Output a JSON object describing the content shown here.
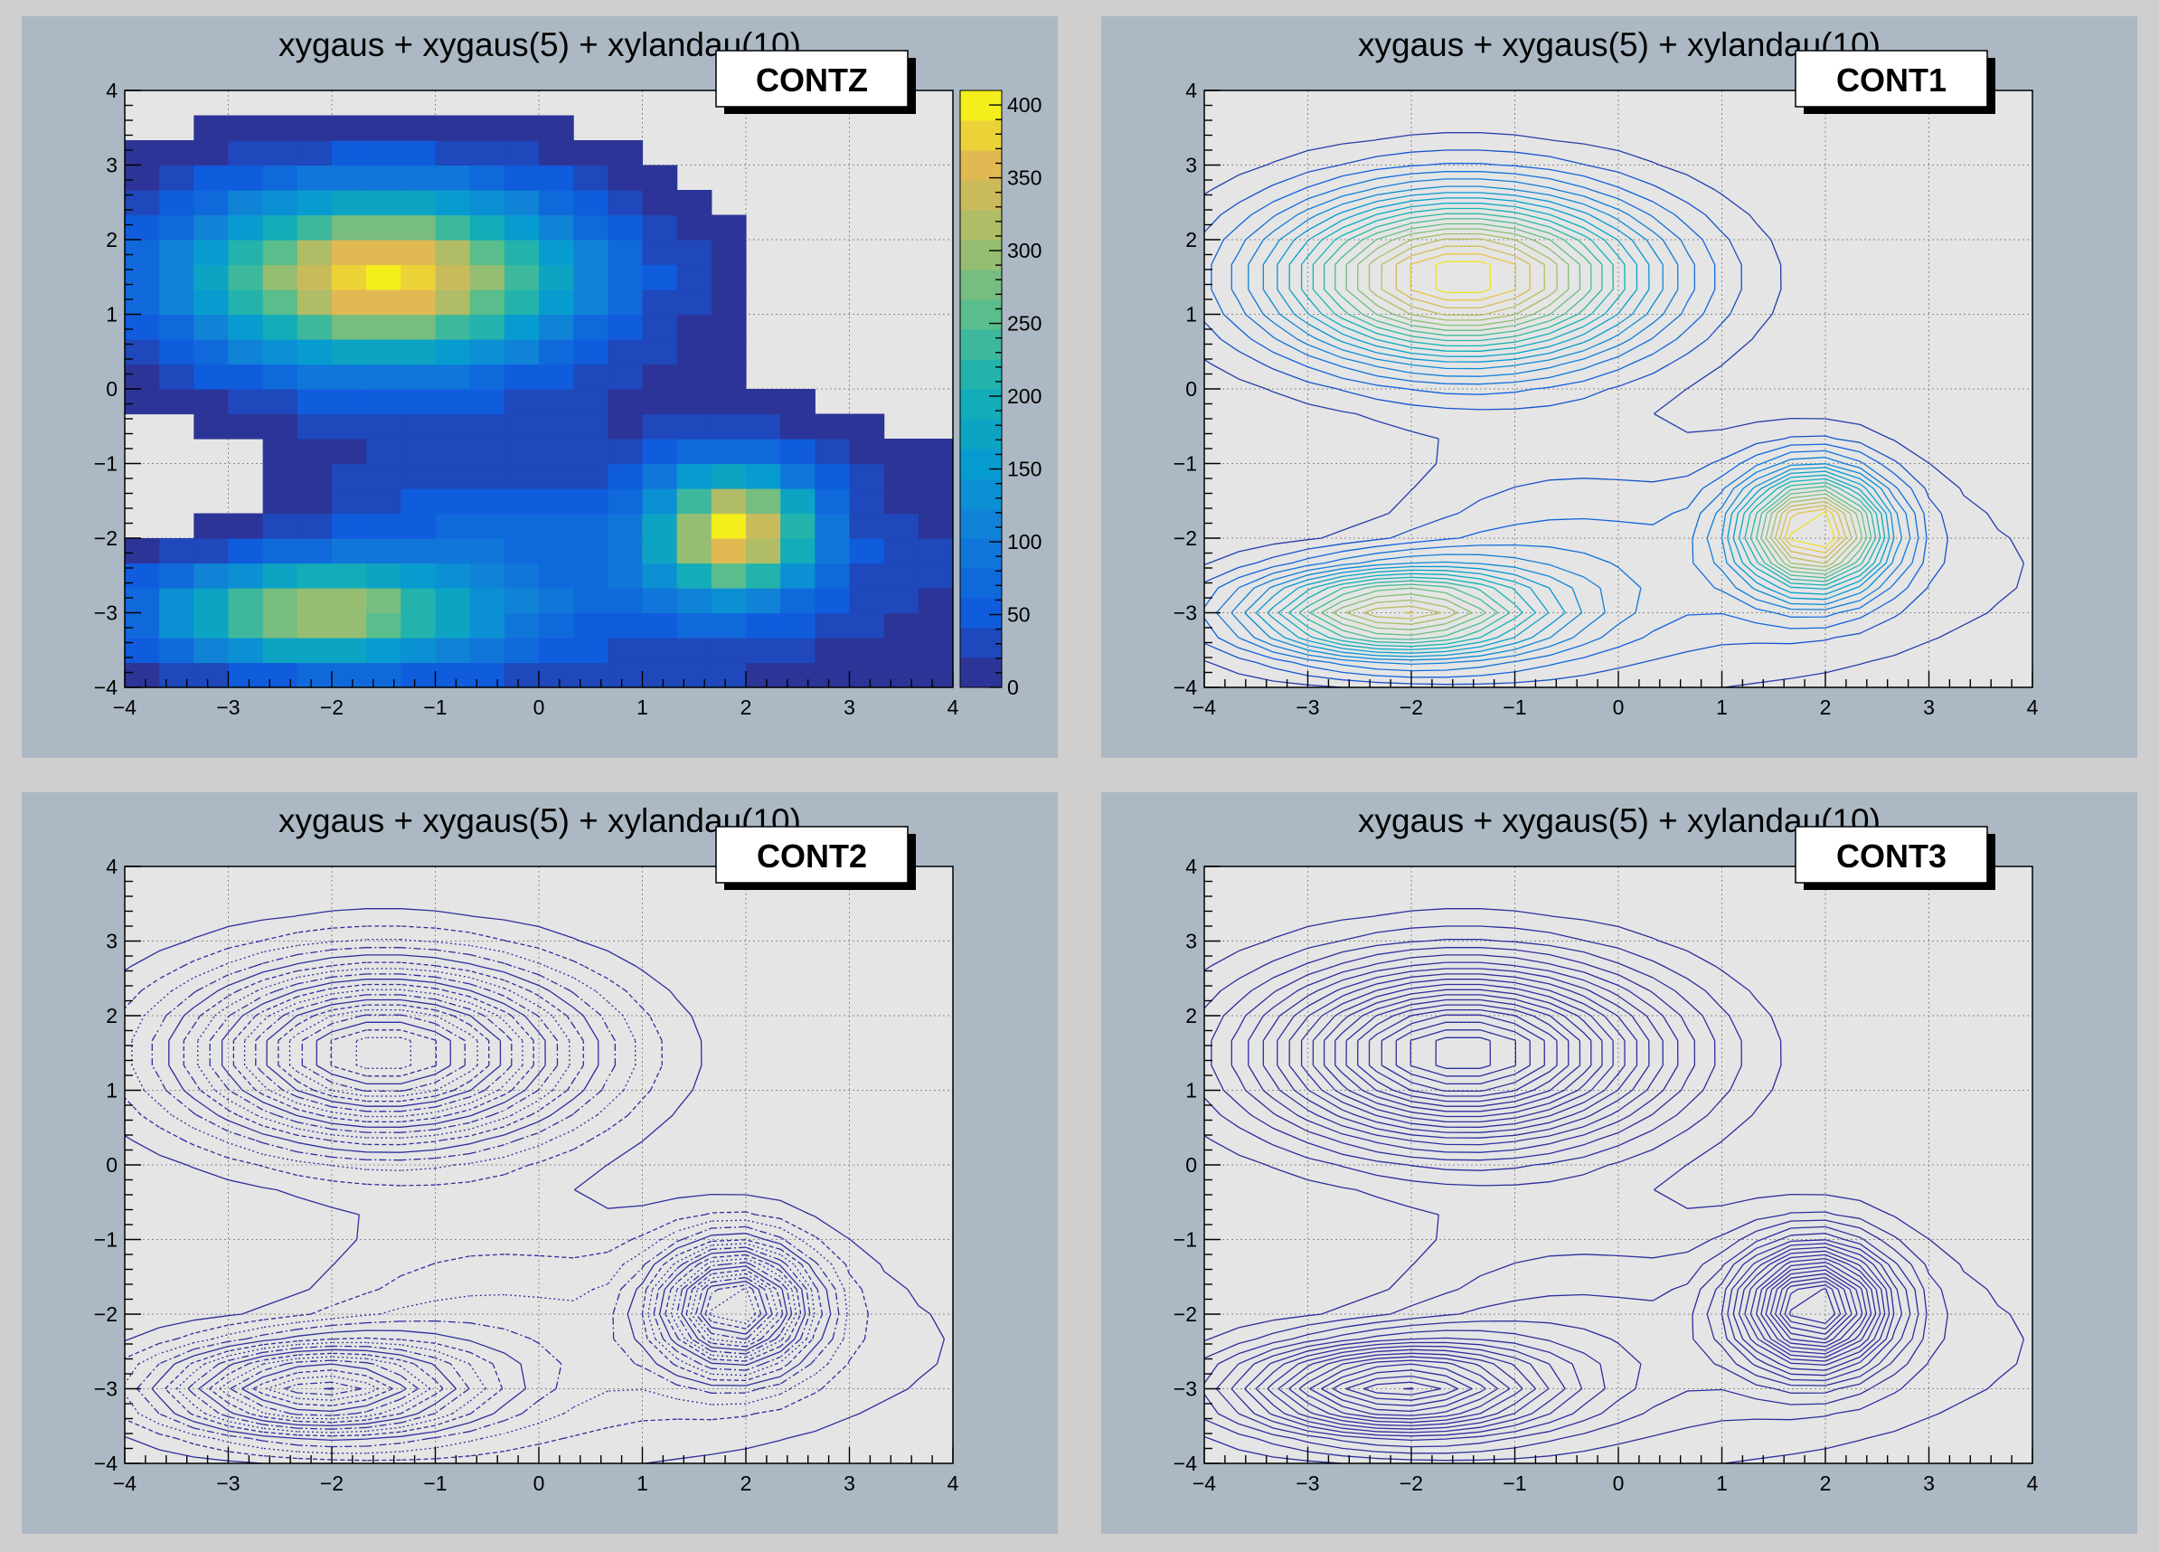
{
  "canvas": {
    "background": "#cfcfcf",
    "pad_color": "#acb9c4",
    "frame_color": "#e5e5e5"
  },
  "chart_data": [
    {
      "type": "heatmap",
      "title": "xygaus + xygaus(5) + xylandau(10)",
      "draw_option": "CONTZ",
      "xlim": [
        -4,
        4
      ],
      "ylim": [
        -4,
        4
      ],
      "xticks": [
        "−4",
        "−3",
        "−2",
        "−1",
        "0",
        "1",
        "2",
        "3",
        "4"
      ],
      "yticks": [
        "−4",
        "−3",
        "−2",
        "−1",
        "0",
        "1",
        "2",
        "3",
        "4"
      ],
      "grid": true,
      "colorbar": {
        "range": [
          0,
          410
        ],
        "ticks": [
          "0",
          "50",
          "100",
          "150",
          "200",
          "250",
          "300",
          "350",
          "400"
        ]
      },
      "peaks": [
        {
          "x": -1.5,
          "y": 1.5,
          "value": 410
        },
        {
          "x": -2.2,
          "y": -3.0,
          "value": 330
        },
        {
          "x": 1.9,
          "y": -1.9,
          "value": 400
        }
      ]
    },
    {
      "type": "heatmap",
      "title": "xygaus + xygaus(5) + xylandau(10)",
      "draw_option": "CONT1",
      "xlim": [
        -4,
        4
      ],
      "ylim": [
        -4,
        4
      ],
      "xticks": [
        "−4",
        "−3",
        "−2",
        "−1",
        "0",
        "1",
        "2",
        "3",
        "4"
      ],
      "yticks": [
        "−4",
        "−3",
        "−2",
        "−1",
        "0",
        "1",
        "2",
        "3",
        "4"
      ],
      "grid": true
    },
    {
      "type": "heatmap",
      "title": "xygaus + xygaus(5) + xylandau(10)",
      "draw_option": "CONT2",
      "xlim": [
        -4,
        4
      ],
      "ylim": [
        -4,
        4
      ],
      "xticks": [
        "−4",
        "−3",
        "−2",
        "−1",
        "0",
        "1",
        "2",
        "3",
        "4"
      ],
      "yticks": [
        "−4",
        "−3",
        "−2",
        "−1",
        "0",
        "1",
        "2",
        "3",
        "4"
      ],
      "grid": true,
      "line_color": "#2e2e9e"
    },
    {
      "type": "heatmap",
      "title": "xygaus + xygaus(5) + xylandau(10)",
      "draw_option": "CONT3",
      "xlim": [
        -4,
        4
      ],
      "ylim": [
        -4,
        4
      ],
      "xticks": [
        "−4",
        "−3",
        "−2",
        "−1",
        "0",
        "1",
        "2",
        "3",
        "4"
      ],
      "yticks": [
        "−4",
        "−3",
        "−2",
        "−1",
        "0",
        "1",
        "2",
        "3",
        "4"
      ],
      "grid": true,
      "line_color": "#2e2e9e"
    }
  ]
}
